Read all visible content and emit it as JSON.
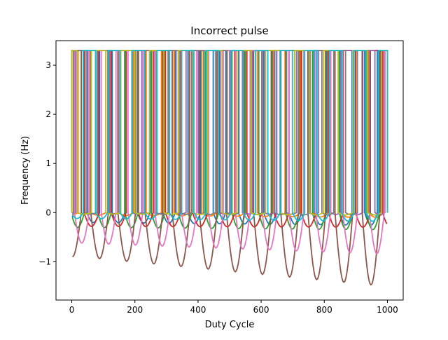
{
  "chart_data": {
    "type": "line",
    "title": "Incorrect pulse",
    "xlabel": "Duty Cycle",
    "ylabel": "Frequency (Hz)",
    "xlim": [
      -50,
      1050
    ],
    "ylim": [
      -1.78,
      3.5
    ],
    "xticks": [
      0,
      200,
      400,
      600,
      800,
      1000
    ],
    "xtick_labels": [
      "0",
      "200",
      "400",
      "600",
      "800",
      "1000"
    ],
    "yticks": [
      -1,
      0,
      1,
      2,
      3
    ],
    "ytick_labels": [
      "−1",
      "0",
      "1",
      "2",
      "3"
    ],
    "grid": false,
    "legend": "none",
    "pulse_high": 3.3,
    "pulse_low": 0.0,
    "x_range": [
      0,
      1000
    ],
    "series": [
      {
        "color": "#1f77b4",
        "period": 80,
        "phase": 8,
        "duty": 0.5,
        "dip_min": [
          -0.2,
          -0.26
        ]
      },
      {
        "color": "#ff7f0e",
        "period": 88,
        "phase": 20,
        "duty": 0.45,
        "dip_min": [
          -0.05,
          -0.1
        ]
      },
      {
        "color": "#2ca02c",
        "period": 85,
        "phase": 40,
        "duty": 0.5,
        "dip_min": [
          -0.3,
          -0.35
        ]
      },
      {
        "color": "#d62728",
        "period": 86,
        "phase": 0,
        "duty": 0.45,
        "dip_min": [
          -0.28,
          -0.3
        ]
      },
      {
        "color": "#9467bd",
        "period": 70,
        "phase": 12,
        "duty": 0.55,
        "dip_min": [
          -0.02,
          -0.04
        ]
      },
      {
        "color": "#8c564b",
        "period": 86,
        "phase": 30,
        "duty": 0.35,
        "dip_min": [
          -0.9,
          -1.52
        ]
      },
      {
        "color": "#e377c2",
        "period": 85,
        "phase": 55,
        "duty": 0.45,
        "dip_min": [
          -0.62,
          -0.85
        ]
      },
      {
        "color": "#7f7f7f",
        "period": 75,
        "phase": 5,
        "duty": 0.5,
        "dip_min": [
          -0.03,
          -0.05
        ]
      },
      {
        "color": "#bcbd22",
        "period": 92,
        "phase": 62,
        "duty": 0.5,
        "dip_min": [
          -0.03,
          -0.05
        ]
      },
      {
        "color": "#17becf",
        "period": 78,
        "phase": 36,
        "duty": 0.5,
        "dip_min": [
          -0.12,
          -0.18
        ]
      }
    ]
  }
}
